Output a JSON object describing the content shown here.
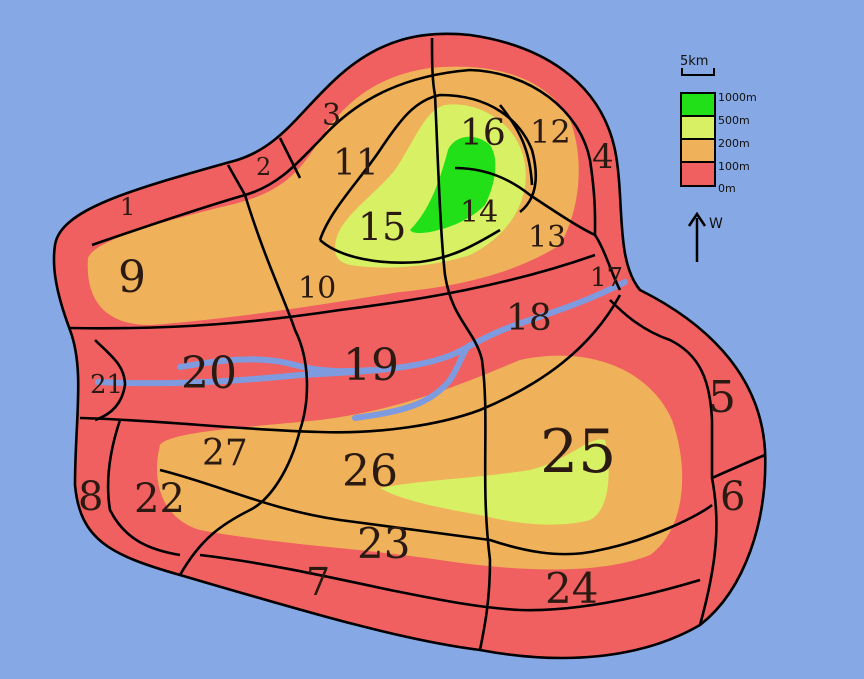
{
  "colors": {
    "sea": "#86a8e4",
    "band_0m": "#f06060",
    "band_100m": "#efb25a",
    "band_200m": "#d8f064",
    "band_1000m": "#22e018",
    "river": "#7e9be0",
    "border": "#000000"
  },
  "regions": [
    "1",
    "2",
    "3",
    "4",
    "5",
    "6",
    "7",
    "8",
    "9",
    "10",
    "11",
    "12",
    "13",
    "14",
    "15",
    "16",
    "17",
    "18",
    "19",
    "20",
    "21",
    "22",
    "23",
    "24",
    "25",
    "26",
    "27"
  ],
  "legend": {
    "scale": "5km",
    "levels": [
      {
        "label": "1000m",
        "color": "#22e018"
      },
      {
        "label": "500m",
        "color": "#d8f064"
      },
      {
        "label": "200m",
        "color": "#efb25a"
      },
      {
        "label": "100m",
        "color": "#f06060"
      },
      {
        "label": "0m",
        "color": ""
      }
    ],
    "compass_letter": "W",
    "compass_icon": "arrow-up-icon"
  }
}
